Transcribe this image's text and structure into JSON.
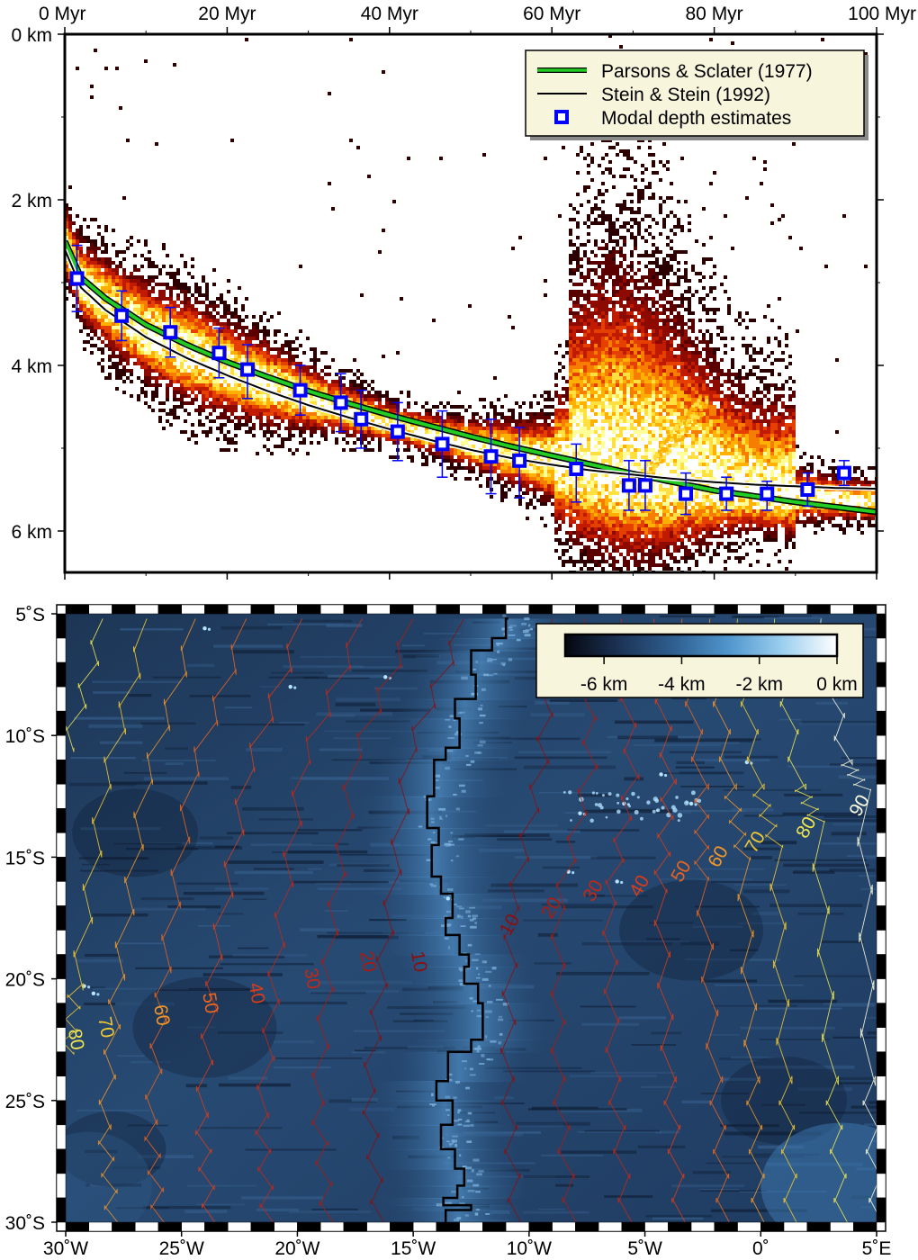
{
  "chart_data": [
    {
      "type": "scatter",
      "title": "",
      "xlabel": "",
      "ylabel": "",
      "xlim": [
        0,
        100
      ],
      "ylim": [
        0,
        6.5
      ],
      "y_inverted": true,
      "x_ticks": [
        0,
        20,
        40,
        60,
        80,
        100
      ],
      "x_tick_labels": [
        "0 Myr",
        "20 Myr",
        "40 Myr",
        "60 Myr",
        "80 Myr",
        "100 Myr"
      ],
      "y_ticks": [
        0,
        2,
        4,
        6
      ],
      "y_tick_labels": [
        "0 km",
        "2 km",
        "4 km",
        "6 km"
      ],
      "background": "2D histogram density of seafloor depth vs crustal age (black-red-yellow-white)",
      "legend_position": "top-right",
      "legend": [
        {
          "label": "Parsons & Sclater (1977)",
          "color": "#22cc22",
          "style": "line"
        },
        {
          "label": "Stein & Stein (1992)",
          "color": "#000000",
          "style": "line"
        },
        {
          "label": "Modal depth estimates",
          "color": "#0000ff",
          "style": "square"
        }
      ],
      "series": [
        {
          "name": "Parsons & Sclater (1977)",
          "color": "#22cc22",
          "x": [
            0,
            2,
            5,
            10,
            15,
            20,
            25,
            30,
            35,
            40,
            45,
            50,
            55,
            60,
            65,
            70,
            75,
            80,
            85,
            90,
            95,
            100
          ],
          "y": [
            2.5,
            2.94,
            3.19,
            3.51,
            3.75,
            3.96,
            4.14,
            4.31,
            4.46,
            4.6,
            4.73,
            4.86,
            4.98,
            5.09,
            5.2,
            5.31,
            5.41,
            5.51,
            5.58,
            5.65,
            5.71,
            5.77
          ]
        },
        {
          "name": "Stein & Stein (1992)",
          "color": "#000000",
          "x": [
            0,
            2,
            5,
            10,
            15,
            20,
            25,
            30,
            35,
            40,
            45,
            50,
            55,
            60,
            65,
            70,
            75,
            80,
            85,
            90,
            95,
            100
          ],
          "y": [
            2.6,
            3.06,
            3.33,
            3.66,
            3.91,
            4.12,
            4.31,
            4.48,
            4.63,
            4.77,
            4.9,
            5.02,
            5.12,
            5.2,
            5.27,
            5.32,
            5.37,
            5.41,
            5.44,
            5.46,
            5.48,
            5.49
          ]
        },
        {
          "name": "Modal depth estimates",
          "color": "#0000ff",
          "x": [
            1.5,
            7,
            13,
            19,
            22.5,
            29,
            34,
            36.5,
            41,
            46.5,
            52.5,
            56,
            63,
            69.5,
            71.5,
            76.5,
            81.5,
            86.5,
            91.5,
            96
          ],
          "y": [
            2.95,
            3.4,
            3.6,
            3.85,
            4.05,
            4.3,
            4.45,
            4.65,
            4.8,
            4.95,
            5.1,
            5.15,
            5.25,
            5.45,
            5.45,
            5.55,
            5.55,
            5.55,
            5.5,
            5.3
          ],
          "error_low": [
            2.55,
            3.1,
            3.3,
            3.55,
            3.75,
            4.0,
            4.1,
            4.3,
            4.45,
            4.55,
            4.65,
            4.75,
            4.95,
            5.15,
            5.15,
            5.3,
            5.35,
            5.4,
            5.3,
            5.15
          ],
          "error_high": [
            3.35,
            3.7,
            3.9,
            4.15,
            4.4,
            4.6,
            4.8,
            5.0,
            5.15,
            5.35,
            5.55,
            5.6,
            5.65,
            5.75,
            5.75,
            5.8,
            5.75,
            5.75,
            5.7,
            5.45
          ]
        }
      ]
    },
    {
      "type": "heatmap",
      "title": "",
      "xlabel": "",
      "ylabel": "",
      "xlim": [
        -30,
        5
      ],
      "ylim": [
        -30,
        -5
      ],
      "x_ticks": [
        -30,
        -25,
        -20,
        -15,
        -10,
        -5,
        0,
        5
      ],
      "x_tick_labels": [
        "30˚W",
        "25˚W",
        "20˚W",
        "15˚W",
        "10˚W",
        "5˚W",
        "0˚",
        "5˚E"
      ],
      "y_ticks": [
        -5,
        -10,
        -15,
        -20,
        -25,
        -30
      ],
      "y_tick_labels": [
        "5˚S",
        "10˚S",
        "15˚S",
        "20˚S",
        "25˚S",
        "30˚S"
      ],
      "colorbar": {
        "position": "top-right",
        "range": [
          -7,
          0
        ],
        "tick_values": [
          -6,
          -4,
          -2,
          0
        ],
        "tick_labels": [
          "-6 km",
          "-4 km",
          "-2 km",
          "0 km"
        ],
        "colors": [
          "#05070f",
          "#1c3356",
          "#2f5f90",
          "#4f95cc",
          "#9ccff0",
          "#ffffff"
        ]
      },
      "ridge_axis": {
        "lon": [
          -10.9,
          -11.0,
          -11.6,
          -12.5,
          -12.3,
          -13.2,
          -13.0,
          -13.6,
          -14.1,
          -14.4,
          -13.9,
          -14.2,
          -13.8,
          -13.3,
          -13.6,
          -13.0,
          -12.6,
          -12.8,
          -12.2,
          -12.0,
          -12.5,
          -13.5,
          -14.0,
          -13.3,
          -13.8,
          -13.2,
          -12.8,
          -13.1,
          -13.7,
          -12.5,
          -13.6
        ],
        "lat": [
          -5.2,
          -6.0,
          -6.5,
          -7.5,
          -8.5,
          -9.3,
          -10.5,
          -11.0,
          -12.5,
          -13.8,
          -14.5,
          -15.8,
          -16.5,
          -17.5,
          -18.2,
          -19.0,
          -19.5,
          -20.2,
          -21.0,
          -22.5,
          -23.0,
          -24.2,
          -25.0,
          -26.0,
          -27.0,
          -27.8,
          -28.5,
          -29.0,
          -29.3,
          -29.5,
          -30.0
        ]
      },
      "isochrones": [
        {
          "label": "10",
          "color": "#8a1010",
          "west": [
            [
              -12.8,
              -5.2
            ],
            [
              -15.2,
              -10.5
            ],
            [
              -16.2,
              -18.0
            ],
            [
              -17.0,
              -24.5
            ],
            [
              -16.5,
              -30.0
            ]
          ],
          "east": [
            [
              -9.0,
              -5.2
            ],
            [
              -9.5,
              -11.0
            ],
            [
              -10.8,
              -17.0
            ],
            [
              -11.0,
              -24.0
            ],
            [
              -10.6,
              -30.0
            ]
          ],
          "west_label": [
            -14.8,
            -19.3
          ],
          "east_label": [
            -10.8,
            -17.8
          ]
        },
        {
          "label": "20",
          "color": "#a81c14",
          "west": [
            [
              -15.0,
              -5.2
            ],
            [
              -17.6,
              -10.8
            ],
            [
              -18.6,
              -18.0
            ],
            [
              -19.2,
              -25.0
            ],
            [
              -18.7,
              -30.0
            ]
          ],
          "east": [
            [
              -7.6,
              -5.2
            ],
            [
              -7.4,
              -11.2
            ],
            [
              -8.8,
              -17.0
            ],
            [
              -8.8,
              -24.0
            ],
            [
              -8.2,
              -30.0
            ]
          ],
          "west_label": [
            -17.0,
            -19.3
          ],
          "east_label": [
            -9.0,
            -17.1
          ]
        },
        {
          "label": "30",
          "color": "#c02818",
          "west": [
            [
              -17.2,
              -5.2
            ],
            [
              -19.8,
              -11.0
            ],
            [
              -20.9,
              -18.5
            ],
            [
              -21.6,
              -25.5
            ],
            [
              -21.3,
              -30.0
            ]
          ],
          "east": [
            [
              -6.0,
              -5.2
            ],
            [
              -5.6,
              -11.6
            ],
            [
              -6.6,
              -16.8
            ],
            [
              -6.4,
              -24.0
            ],
            [
              -5.8,
              -30.0
            ]
          ],
          "west_label": [
            -19.4,
            -20.0
          ],
          "east_label": [
            -7.2,
            -16.4
          ]
        },
        {
          "label": "40",
          "color": "#d83c1a",
          "west": [
            [
              -19.8,
              -5.2
            ],
            [
              -22.2,
              -11.3
            ],
            [
              -23.6,
              -19.0
            ],
            [
              -24.2,
              -25.5
            ],
            [
              -23.8,
              -30.0
            ]
          ],
          "east": [
            [
              -4.6,
              -5.2
            ],
            [
              -4.0,
              -11.8
            ],
            [
              -4.4,
              -16.3
            ],
            [
              -4.0,
              -24.0
            ],
            [
              -3.5,
              -30.0
            ]
          ],
          "west_label": [
            -21.8,
            -20.6
          ],
          "east_label": [
            -5.2,
            -16.2
          ]
        },
        {
          "label": "50",
          "color": "#e8641e",
          "west": [
            [
              -22.2,
              -5.2
            ],
            [
              -24.6,
              -11.5
            ],
            [
              -25.8,
              -19.5
            ],
            [
              -26.4,
              -25.8
            ],
            [
              -26.0,
              -30.0
            ]
          ],
          "east": [
            [
              -3.4,
              -5.2
            ],
            [
              -2.6,
              -12.0
            ],
            [
              -2.6,
              -15.8
            ],
            [
              -2.0,
              -24.0
            ],
            [
              -1.6,
              -30.0
            ]
          ],
          "west_label": [
            -23.8,
            -21.0
          ],
          "east_label": [
            -3.4,
            -15.6
          ]
        },
        {
          "label": "60",
          "color": "#f0962a",
          "west": [
            [
              -24.4,
              -5.2
            ],
            [
              -26.6,
              -11.8
            ],
            [
              -27.8,
              -19.8
            ],
            [
              -28.4,
              -26.0
            ],
            [
              -28.0,
              -30.0
            ]
          ],
          "east": [
            [
              -2.2,
              -5.2
            ],
            [
              -1.4,
              -12.0
            ],
            [
              -0.8,
              -15.0
            ],
            [
              -0.4,
              -24.0
            ],
            [
              -0.1,
              -30.0
            ]
          ],
          "west_label": [
            -25.9,
            -21.5
          ],
          "east_label": [
            -1.8,
            -15.0
          ]
        },
        {
          "label": "70",
          "color": "#f0c832",
          "west": [
            [
              -26.5,
              -5.2
            ],
            [
              -28.4,
              -12.0
            ],
            [
              -29.6,
              -20.2
            ],
            [
              -30.0,
              -23.0
            ]
          ],
          "east": [
            [
              -1.0,
              -5.2
            ],
            [
              -0.2,
              -12.0
            ],
            [
              0.6,
              -14.5
            ],
            [
              1.0,
              -24.0
            ],
            [
              1.3,
              -30.0
            ]
          ],
          "west_label": [
            -28.3,
            -22.0
          ],
          "east_label": [
            -0.2,
            -14.4
          ]
        },
        {
          "label": "80",
          "color": "#f0e650",
          "west": [
            [
              -28.4,
              -5.2
            ],
            [
              -30.0,
              -10.5
            ]
          ],
          "east": [
            [
              0.6,
              -5.2
            ],
            [
              1.6,
              -12.0
            ],
            [
              2.4,
              -13.5
            ],
            [
              3.0,
              -24.0
            ],
            [
              3.5,
              -30.0
            ]
          ],
          "west_label": [
            -29.6,
            -22.5
          ],
          "east_label": [
            2.0,
            -13.8
          ]
        },
        {
          "label": "90",
          "color": "#fafadc",
          "west": [],
          "east": [
            [
              2.6,
              -5.2
            ],
            [
              3.6,
              -11.0
            ],
            [
              4.4,
              -12.2
            ],
            [
              4.6,
              -24.0
            ],
            [
              5.0,
              -30.0
            ]
          ],
          "west_label": null,
          "east_label": [
            4.3,
            -12.9
          ]
        }
      ]
    }
  ]
}
